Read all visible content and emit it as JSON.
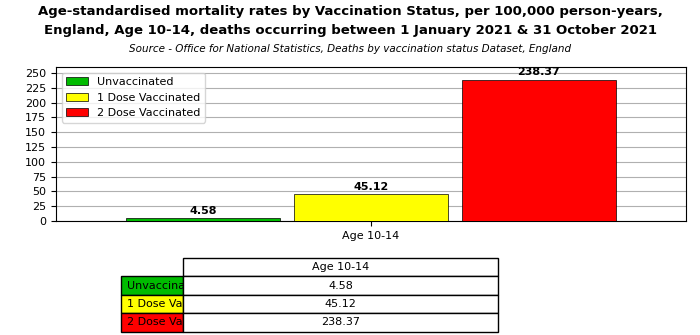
{
  "chart_data": {
    "type": "bar",
    "title": "Age-standardised mortality rates by Vaccination Status, per 100,000 person-years,",
    "subtitle": "England, Age 10-14, deaths occurring between 1 January 2021 & 31 October 2021",
    "source": "Source - Office for National Statistics, Deaths by vaccination status Dataset, England",
    "categories": [
      "Age 10-14"
    ],
    "series": [
      {
        "name": "Unvaccinated",
        "color": "#00bb00",
        "values": [
          4.58
        ]
      },
      {
        "name": "1 Dose Vaccinated",
        "color": "#ffff00",
        "values": [
          45.12
        ]
      },
      {
        "name": "2 Dose Vaccinated",
        "color": "#ff0000",
        "values": [
          238.37
        ]
      }
    ],
    "ylim": [
      0,
      260
    ],
    "yticks": [
      0,
      25,
      50,
      75,
      100,
      125,
      150,
      175,
      200,
      225,
      250
    ],
    "grid": true,
    "legend": "upper left",
    "data_labels": true
  }
}
